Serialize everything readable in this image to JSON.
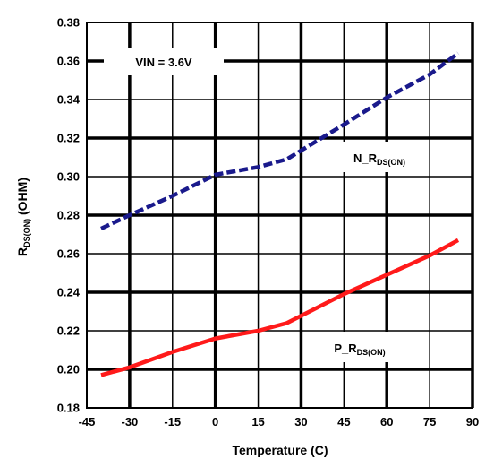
{
  "chart_data": {
    "type": "line",
    "title": "",
    "xlabel": "Temperature (C)",
    "ylabel_main": "R",
    "ylabel_sub": "DS(ON)",
    "ylabel_rest": " (OHM)",
    "xlim": [
      -45,
      90
    ],
    "ylim": [
      0.18,
      0.38
    ],
    "x_ticks": [
      "-45",
      "-30",
      "-15",
      "0",
      "15",
      "30",
      "45",
      "60",
      "75",
      "90"
    ],
    "y_ticks": [
      "0.18",
      "0.20",
      "0.22",
      "0.24",
      "0.26",
      "0.28",
      "0.30",
      "0.32",
      "0.34",
      "0.36",
      "0.38"
    ],
    "grid": true,
    "annotation_vin": "VIN = 3.6V",
    "series": [
      {
        "label_main": "N_R",
        "label_sub": "DS(ON)",
        "color": "#1a1a8c",
        "style": "dashed",
        "points": [
          [
            -40,
            0.273
          ],
          [
            -30,
            0.28
          ],
          [
            -15,
            0.29
          ],
          [
            0,
            0.301
          ],
          [
            15,
            0.305
          ],
          [
            25,
            0.309
          ],
          [
            45,
            0.327
          ],
          [
            60,
            0.341
          ],
          [
            75,
            0.353
          ],
          [
            85,
            0.364
          ]
        ]
      },
      {
        "label_main": "P_R",
        "label_sub": "DS(ON)",
        "color": "#ff1a1a",
        "style": "solid",
        "points": [
          [
            -40,
            0.197
          ],
          [
            -30,
            0.201
          ],
          [
            -15,
            0.209
          ],
          [
            0,
            0.216
          ],
          [
            15,
            0.22
          ],
          [
            25,
            0.224
          ],
          [
            45,
            0.239
          ],
          [
            60,
            0.249
          ],
          [
            75,
            0.259
          ],
          [
            85,
            0.267
          ]
        ]
      }
    ]
  }
}
